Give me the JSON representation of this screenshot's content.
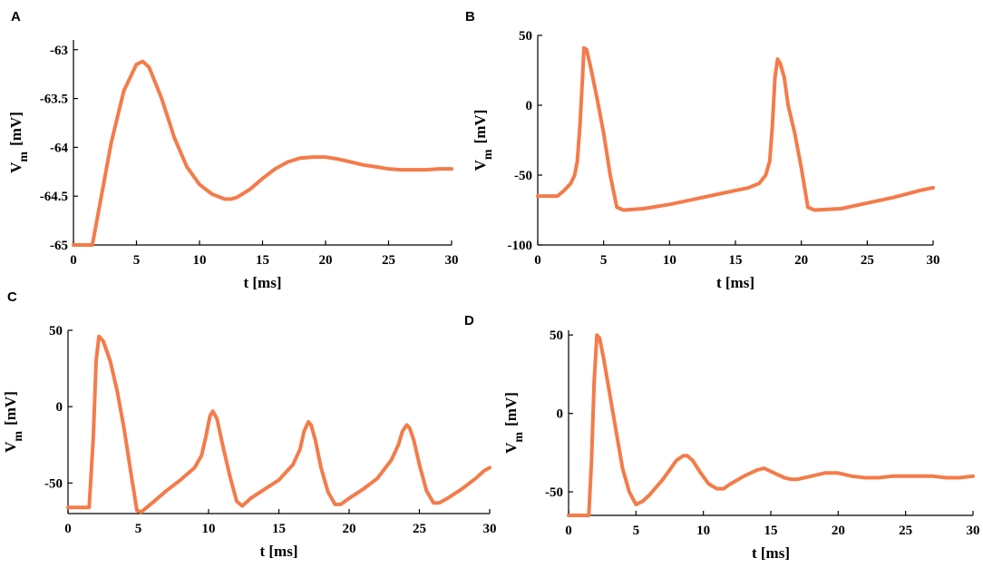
{
  "colors": {
    "trace": "#f47b4a"
  },
  "chart_data": [
    {
      "panel": "A",
      "type": "line",
      "xlabel": "t [ms]",
      "ylabel_main": "V",
      "ylabel_sub": "m",
      "ylabel_unit": "[mV]",
      "xlim": [
        0,
        30
      ],
      "ylim": [
        -65,
        -62.9
      ],
      "xticks": [
        0,
        5,
        10,
        15,
        20,
        25,
        30
      ],
      "yticks": [
        -65,
        -64.5,
        -64,
        -63.5,
        -63
      ],
      "series": [
        {
          "x": [
            0,
            1.5,
            2,
            3,
            4,
            5,
            5.5,
            6,
            7,
            8,
            9,
            10,
            11,
            12,
            12.5,
            13,
            14,
            15,
            16,
            17,
            18,
            19,
            20,
            21,
            22,
            23,
            24,
            25,
            26,
            27,
            28,
            29,
            30
          ],
          "y": [
            -65,
            -65,
            -64.65,
            -63.95,
            -63.42,
            -63.15,
            -63.12,
            -63.18,
            -63.5,
            -63.9,
            -64.2,
            -64.38,
            -64.48,
            -64.53,
            -64.53,
            -64.51,
            -64.43,
            -64.32,
            -64.22,
            -64.15,
            -64.11,
            -64.1,
            -64.1,
            -64.12,
            -64.15,
            -64.18,
            -64.2,
            -64.22,
            -64.23,
            -64.23,
            -64.23,
            -64.22,
            -64.22
          ]
        }
      ]
    },
    {
      "panel": "B",
      "type": "line",
      "xlabel": "t [ms]",
      "ylabel_main": "V",
      "ylabel_sub": "m",
      "ylabel_unit": "[mV]",
      "xlim": [
        0,
        30
      ],
      "ylim": [
        -100,
        50
      ],
      "xticks": [
        0,
        5,
        10,
        15,
        20,
        25,
        30
      ],
      "yticks": [
        -100,
        -50,
        0,
        50
      ],
      "series": [
        {
          "x": [
            0,
            1.5,
            2,
            2.5,
            2.8,
            3.0,
            3.2,
            3.4,
            3.5,
            3.7,
            4.0,
            4.5,
            5.0,
            5.5,
            6.0,
            6.5,
            8,
            10,
            12,
            14,
            15,
            16,
            16.8,
            17.3,
            17.6,
            17.8,
            18.0,
            18.2,
            18.4,
            18.7,
            19.0,
            19.5,
            20.0,
            20.5,
            21,
            23,
            25,
            27,
            29,
            30
          ],
          "y": [
            -65,
            -65,
            -61,
            -56,
            -50,
            -40,
            -15,
            20,
            41,
            40,
            28,
            5,
            -20,
            -50,
            -73,
            -75,
            -74,
            -71,
            -67,
            -63,
            -61,
            -59,
            -56,
            -50,
            -40,
            -15,
            20,
            33,
            30,
            20,
            0,
            -20,
            -45,
            -73,
            -75,
            -74,
            -70,
            -66,
            -61,
            -59
          ]
        }
      ]
    },
    {
      "panel": "C",
      "type": "line",
      "xlabel": "t [ms]",
      "ylabel_main": "V",
      "ylabel_sub": "m",
      "ylabel_unit": "[mV]",
      "xlim": [
        0,
        30
      ],
      "ylim": [
        -70,
        50
      ],
      "xticks": [
        0,
        5,
        10,
        15,
        20,
        25,
        30
      ],
      "yticks": [
        -50,
        0,
        50
      ],
      "series": [
        {
          "x": [
            0,
            1.5,
            1.8,
            2.0,
            2.2,
            2.5,
            3.0,
            3.5,
            4.0,
            4.5,
            4.9,
            5.2,
            6,
            7,
            8,
            9,
            9.5,
            9.8,
            10.1,
            10.3,
            10.6,
            11.0,
            11.5,
            12.0,
            12.4,
            13,
            14,
            15,
            16,
            16.5,
            16.8,
            17.1,
            17.3,
            17.6,
            18.0,
            18.5,
            19.0,
            19.4,
            20,
            21,
            22,
            23,
            23.5,
            23.8,
            24.1,
            24.3,
            24.6,
            25.0,
            25.5,
            26.0,
            26.4,
            27,
            28,
            29,
            29.6,
            30
          ],
          "y": [
            -66,
            -66,
            -20,
            30,
            46,
            43,
            30,
            10,
            -15,
            -45,
            -68,
            -69,
            -63,
            -55,
            -48,
            -40,
            -32,
            -20,
            -6,
            -3,
            -8,
            -25,
            -45,
            -62,
            -65,
            -60,
            -54,
            -48,
            -38,
            -28,
            -16,
            -10,
            -12,
            -22,
            -40,
            -56,
            -64,
            -64,
            -60,
            -54,
            -47,
            -35,
            -25,
            -16,
            -12,
            -14,
            -22,
            -38,
            -55,
            -63,
            -63,
            -60,
            -54,
            -47,
            -42,
            -40
          ]
        }
      ]
    },
    {
      "panel": "D",
      "type": "line",
      "xlabel": "t [ms]",
      "ylabel_main": "V",
      "ylabel_sub": "m",
      "ylabel_unit": "[mV]",
      "xlim": [
        0,
        30
      ],
      "ylim": [
        -65,
        53
      ],
      "xticks": [
        0,
        5,
        10,
        15,
        20,
        25,
        30
      ],
      "yticks": [
        -50,
        0,
        50
      ],
      "series": [
        {
          "x": [
            0,
            1.5,
            1.7,
            1.9,
            2.1,
            2.3,
            2.6,
            3.0,
            3.5,
            4.0,
            4.5,
            5.0,
            5.5,
            6.0,
            6.5,
            7.0,
            7.5,
            8.0,
            8.5,
            8.8,
            9.2,
            9.8,
            10.4,
            11.0,
            11.5,
            12,
            13,
            14,
            14.5,
            15,
            16,
            16.5,
            17,
            18,
            19,
            19.5,
            20,
            21,
            22,
            23,
            24,
            25,
            26,
            27,
            28,
            29,
            30
          ],
          "y": [
            -65,
            -65,
            -30,
            20,
            50,
            48,
            35,
            15,
            -10,
            -35,
            -50,
            -58,
            -56,
            -52,
            -47,
            -42,
            -36,
            -30,
            -27,
            -27,
            -30,
            -38,
            -45,
            -48,
            -48,
            -45,
            -40,
            -36,
            -35,
            -37,
            -41,
            -42,
            -42,
            -40,
            -38,
            -38,
            -38,
            -40,
            -41,
            -41,
            -40,
            -40,
            -40,
            -40,
            -41,
            -41,
            -40
          ]
        }
      ]
    }
  ]
}
